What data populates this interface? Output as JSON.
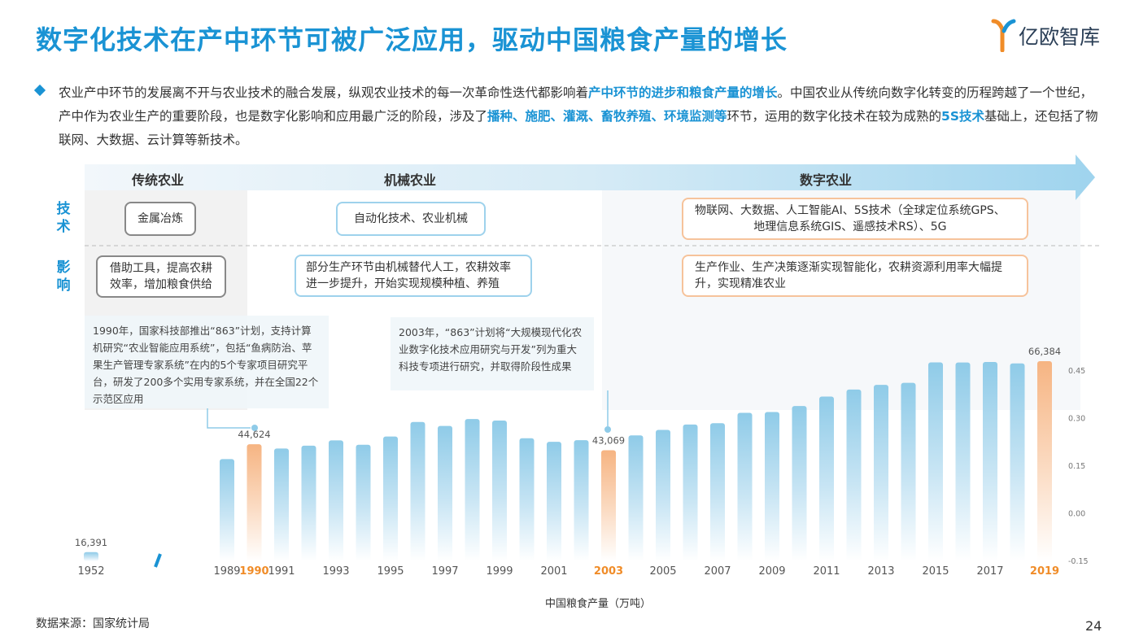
{
  "title": "数字化技术在产中环节可被广泛应用，驱动中国粮食产量的增长",
  "logo": {
    "text": "亿欧智库"
  },
  "summary": {
    "segments": [
      {
        "text": "农业产中环节的发展离不开与农业技术的融合发展，纵观农业技术的每一次革命性迭代都影响着",
        "highlight": false
      },
      {
        "text": "产中环节的进步和粮食产量的增长",
        "highlight": true
      },
      {
        "text": "。中国农业从传统向数字化转变的历程跨越了一个世纪，产中作为农业生产的重要阶段，也是数字化影响和应用最广泛的阶段，涉及了",
        "highlight": false
      },
      {
        "text": "播种、施肥、灌溉、畜牧养殖、环境监测等",
        "highlight": true
      },
      {
        "text": "环节，运用的数字化技术在较为成熟的",
        "highlight": false
      },
      {
        "text": "5S技术",
        "highlight": true
      },
      {
        "text": "基础上，还包括了物联网、大数据、云计算等新技术。",
        "highlight": false
      }
    ]
  },
  "eras": {
    "traditional": "传统农业",
    "mechanical": "机械农业",
    "digital": "数字农业"
  },
  "rows": {
    "tech_label": "技术",
    "impact_label": "影响"
  },
  "tech": {
    "traditional": "金属冶炼",
    "mechanical": "自动化技术、农业机械",
    "digital_line1": "物联网、大数据、人工智能AI、5S技术（全球定位系统GPS、",
    "digital_line2": "地理信息系统GIS、遥感技术RS）、5G"
  },
  "impact": {
    "traditional_line1": "借助工具，提高农耕",
    "traditional_line2": "效率，增加粮食供给",
    "mechanical_line1": "部分生产环节由机械替代人工，农耕效率",
    "mechanical_line2": "进一步提升，开始实现规模种植、养殖",
    "digital_line1": "生产作业、生产决策逐渐实现智能化，农耕资源利用率大幅提",
    "digital_line2": "升，实现精准农业"
  },
  "callouts": {
    "c1990": "1990年，国家科技部推出“863”计划，支持计算机研究“农业智能应用系统”，包括“鱼病防治、苹果生产管理专家系统”在内的5个专家项目研究平台，研发了200多个实用专家系统，并在全国22个示范区应用",
    "c2003": "2003年，“863”计划将“大规模现代化农业数字化技术应用研究与开发”列为重大科技专项进行研究，并取得阶段性成果"
  },
  "colors": {
    "accent": "#1a93d4",
    "bar_normal_top": "#8fcbe8",
    "bar_highlight_top": "#f6b482",
    "highlight_text": "#f08c28"
  },
  "chart_data": {
    "type": "bar",
    "xlabel": "中国粮食产量（万吨）",
    "categories": [
      "1952",
      "1989",
      "1990",
      "1991",
      "1992",
      "1993",
      "1994",
      "1995",
      "1996",
      "1997",
      "1998",
      "1999",
      "2000",
      "2001",
      "2002",
      "2003",
      "2004",
      "2005",
      "2006",
      "2007",
      "2008",
      "2009",
      "2010",
      "2011",
      "2012",
      "2013",
      "2014",
      "2015",
      "2016",
      "2017",
      "2018",
      "2019"
    ],
    "x_tick_labels": [
      "1952",
      "1989",
      "1990",
      "1991",
      "1993",
      "1995",
      "1997",
      "1999",
      "2001",
      "2003",
      "2005",
      "2007",
      "2009",
      "2011",
      "2013",
      "2015",
      "2017",
      "2019"
    ],
    "highlight_labels": [
      "1990",
      "2003",
      "2019"
    ],
    "values": [
      16391,
      40755,
      44624,
      43529,
      44266,
      45649,
      44510,
      46662,
      50454,
      49417,
      51230,
      50839,
      46218,
      45264,
      45706,
      43069,
      46947,
      48402,
      49804,
      50160,
      52871,
      53082,
      54648,
      57121,
      58958,
      60194,
      60703,
      66060,
      66044,
      66161,
      65789,
      66384
    ],
    "highlighted": [
      "1990",
      "2003",
      "2019"
    ],
    "data_labels": [
      {
        "category": "1952",
        "text": "16,391"
      },
      {
        "category": "1990",
        "text": "44,624"
      },
      {
        "category": "2003",
        "text": "43,069"
      },
      {
        "category": "2019",
        "text": "66,384"
      }
    ],
    "y_axis_right_ticks": [
      "0.45",
      "0.30",
      "0.15",
      "0.00",
      "-0.15"
    ],
    "axis_break": true,
    "grid": false
  },
  "footer": {
    "source": "数据来源：国家统计局",
    "page": "24"
  }
}
